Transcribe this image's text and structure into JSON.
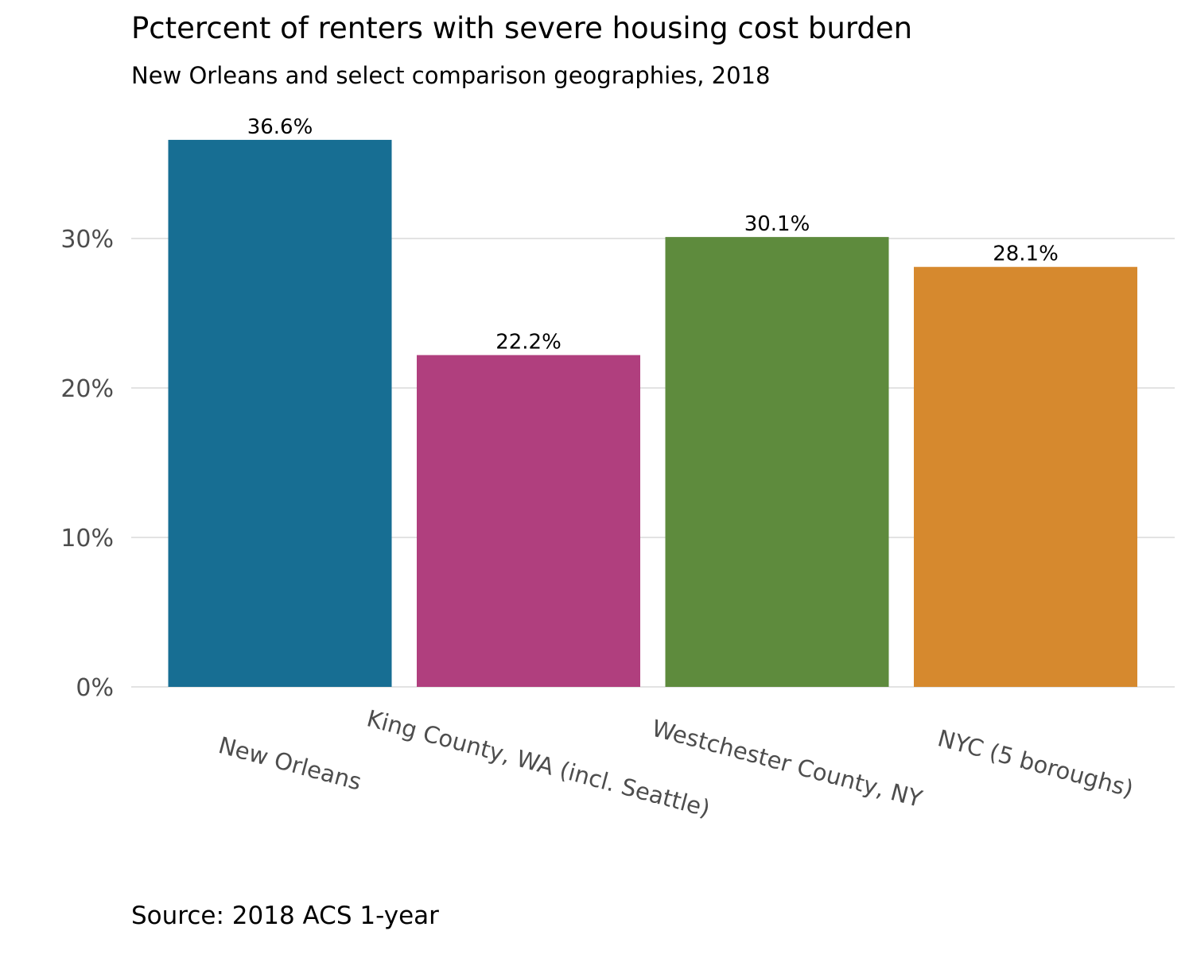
{
  "chart_data": {
    "type": "bar",
    "title": "Pctercent of renters with severe housing cost burden",
    "subtitle": "New Orleans and select comparison geographies, 2018",
    "caption": "Source: 2018 ACS 1-year",
    "xlabel": "",
    "ylabel": "",
    "categories": [
      "New Orleans",
      "King County, WA (incl. Seattle)",
      "Westchester County, NY",
      "NYC (5 boroughs)"
    ],
    "values": [
      36.6,
      22.2,
      30.1,
      28.1
    ],
    "data_labels": [
      "36.6%",
      "22.2%",
      "30.1%",
      "28.1%"
    ],
    "colors": [
      "#176e93",
      "#b03f7e",
      "#5e8b3d",
      "#d6892e"
    ],
    "yticks": [
      0,
      10,
      20,
      30
    ],
    "ytick_labels": [
      "0%",
      "10%",
      "20%",
      "30%"
    ],
    "ylim": [
      0,
      38.5
    ],
    "grid": "horizontal",
    "legend": "none"
  }
}
